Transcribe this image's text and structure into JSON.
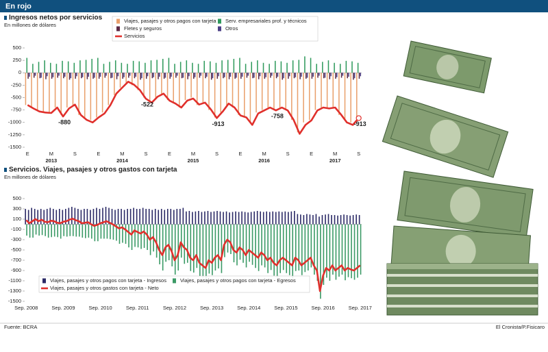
{
  "header": {
    "title": "En rojo"
  },
  "chart_data": [
    {
      "type": "bar",
      "title": "Ingresos netos por servicios",
      "subtitle": "En millones de dólares",
      "categories": [
        "E",
        null,
        null,
        null,
        "M",
        null,
        null,
        null,
        "S",
        null,
        null,
        null,
        "E",
        null,
        null,
        null,
        "M",
        null,
        null,
        null,
        "S",
        null,
        null,
        null,
        "E",
        null,
        null,
        null,
        "M",
        null,
        null,
        null,
        "S",
        null,
        null,
        null,
        "E",
        null,
        null,
        null,
        "M",
        null,
        null,
        null,
        "S",
        null,
        null,
        null,
        "E",
        null,
        null,
        null,
        "M",
        null,
        null,
        null,
        "S"
      ],
      "category_groups": [
        null,
        null,
        null,
        null,
        "2013",
        null,
        null,
        null,
        null,
        null,
        null,
        null,
        null,
        null,
        null,
        null,
        "2014",
        null,
        null,
        null,
        null,
        null,
        null,
        null,
        null,
        null,
        null,
        null,
        "2015",
        null,
        null,
        null,
        null,
        null,
        null,
        null,
        null,
        null,
        null,
        null,
        "2016",
        null,
        null,
        null,
        null,
        null,
        null,
        null,
        null,
        null,
        null,
        null,
        "2017",
        null,
        null,
        null,
        null
      ],
      "series": [
        {
          "name": "Viajes, pasajes y otros pagos con tarjeta",
          "color": "#e9a06c",
          "values": [
            -650,
            -700,
            -750,
            -800,
            -800,
            -700,
            -850,
            -700,
            -650,
            -850,
            -900,
            -950,
            -900,
            -800,
            -650,
            -450,
            -300,
            -200,
            -250,
            -350,
            -500,
            -600,
            -500,
            -450,
            -550,
            -600,
            -700,
            -550,
            -500,
            -650,
            -600,
            -750,
            -900,
            -800,
            -650,
            -700,
            -850,
            -900,
            -1000,
            -800,
            -750,
            -700,
            -750,
            -700,
            -750,
            -950,
            -1200,
            -1000,
            -950,
            -750,
            -700,
            -700,
            -700,
            -850,
            -950,
            -1000,
            -900
          ]
        },
        {
          "name": "Serv. empresariales prof. y técnicos",
          "color": "#2f9a5c",
          "values": [
            300,
            180,
            220,
            250,
            200,
            180,
            240,
            230,
            200,
            250,
            260,
            280,
            300,
            180,
            220,
            250,
            200,
            180,
            240,
            230,
            200,
            250,
            260,
            280,
            300,
            180,
            220,
            250,
            200,
            180,
            240,
            230,
            200,
            250,
            260,
            280,
            300,
            180,
            220,
            250,
            200,
            180,
            240,
            230,
            200,
            250,
            260,
            330,
            300,
            180,
            220,
            250,
            200,
            180,
            240,
            230,
            200
          ]
        },
        {
          "name": "Fletes y seguros",
          "color": "#5b2844",
          "values": [
            -120,
            -100,
            -110,
            -130,
            -120,
            -100,
            -110,
            -140,
            -120,
            -110,
            -130,
            -120,
            -120,
            -100,
            -110,
            -130,
            -120,
            -100,
            -110,
            -140,
            -120,
            -110,
            -130,
            -120,
            -120,
            -100,
            -110,
            -130,
            -120,
            -100,
            -110,
            -140,
            -120,
            -110,
            -130,
            -120,
            -120,
            -100,
            -110,
            -130,
            -120,
            -100,
            -110,
            -140,
            -120,
            -110,
            -130,
            -120,
            -120,
            -100,
            -110,
            -130,
            -120,
            -100,
            -110,
            -140,
            -120
          ]
        },
        {
          "name": "Otros",
          "color": "#4b3f86",
          "values": [
            -80,
            -60,
            -100,
            -70,
            -90,
            -60,
            -80,
            -110,
            -70,
            -90,
            -80,
            -100,
            -80,
            -60,
            -100,
            -70,
            -90,
            -60,
            -80,
            -110,
            -70,
            -90,
            -80,
            -100,
            -80,
            -60,
            -100,
            -70,
            -90,
            -60,
            -80,
            -110,
            -70,
            -90,
            -80,
            -100,
            -80,
            -60,
            -100,
            -70,
            -90,
            -60,
            -80,
            -110,
            -70,
            -90,
            -80,
            -100,
            -80,
            -60,
            -100,
            -70,
            -90,
            -60,
            -80,
            -110,
            -70
          ]
        },
        {
          "name": "Servicios",
          "type": "line",
          "color": "#e0302c",
          "values": [
            -650,
            -720,
            -780,
            -800,
            -810,
            -700,
            -880,
            -720,
            -640,
            -850,
            -950,
            -1000,
            -900,
            -820,
            -650,
            -420,
            -300,
            -180,
            -240,
            -350,
            -522,
            -600,
            -480,
            -420,
            -560,
            -620,
            -700,
            -560,
            -520,
            -640,
            -600,
            -740,
            -913,
            -780,
            -620,
            -700,
            -860,
            -900,
            -1050,
            -820,
            -760,
            -700,
            -758,
            -700,
            -760,
            -950,
            -1230,
            -1050,
            -960,
            -760,
            -700,
            -720,
            -700,
            -840,
            -1000,
            -1050,
            -913
          ],
          "value_labels": [
            null,
            null,
            null,
            null,
            null,
            null,
            "-880",
            null,
            null,
            null,
            null,
            null,
            null,
            null,
            null,
            null,
            null,
            null,
            null,
            null,
            "-522",
            null,
            null,
            null,
            null,
            null,
            null,
            null,
            null,
            null,
            null,
            null,
            "-913",
            null,
            null,
            null,
            null,
            null,
            null,
            null,
            null,
            null,
            "-758",
            null,
            null,
            null,
            null,
            null,
            null,
            null,
            null,
            null,
            null,
            null,
            null,
            null,
            "-913"
          ]
        }
      ],
      "ylim": [
        -1500,
        500
      ],
      "yticks": [
        500,
        250,
        0,
        -250,
        -500,
        -750,
        -1000,
        -1250,
        -1500
      ],
      "grid": false,
      "legend": "top"
    },
    {
      "type": "bar",
      "title": "Servicios. Viajes, pasajes y otros gastos con tarjeta",
      "subtitle": "En millones de dólares",
      "categories": [
        "Sep. 2008",
        null,
        null,
        null,
        null,
        null,
        null,
        null,
        null,
        null,
        null,
        null,
        "Sep. 2009",
        null,
        null,
        null,
        null,
        null,
        null,
        null,
        null,
        null,
        null,
        null,
        "Sep. 2010",
        null,
        null,
        null,
        null,
        null,
        null,
        null,
        null,
        null,
        null,
        null,
        "Sep. 2011",
        null,
        null,
        null,
        null,
        null,
        null,
        null,
        null,
        null,
        null,
        null,
        "Sep. 2012",
        null,
        null,
        null,
        null,
        null,
        null,
        null,
        null,
        null,
        null,
        null,
        "Sep. 2013",
        null,
        null,
        null,
        null,
        null,
        null,
        null,
        null,
        null,
        null,
        null,
        "Sep. 2014",
        null,
        null,
        null,
        null,
        null,
        null,
        null,
        null,
        null,
        null,
        null,
        "Sep. 2015",
        null,
        null,
        null,
        null,
        null,
        null,
        null,
        null,
        null,
        null,
        null,
        "Sep. 2016",
        null,
        null,
        null,
        null,
        null,
        null,
        null,
        null,
        null,
        null,
        null,
        "Sep. 2017"
      ],
      "series": [
        {
          "name": "Viajes, pasajes y otros pagos con tarjeta - Ingresos",
          "color": "#2b2a66",
          "values": [
            300,
            280,
            320,
            300,
            280,
            300,
            280,
            300,
            320,
            300,
            280,
            300,
            280,
            300,
            320,
            340,
            320,
            300,
            280,
            300,
            300,
            280,
            300,
            320,
            300,
            320,
            340,
            320,
            300,
            280,
            300,
            300,
            280,
            300,
            300,
            320,
            300,
            300,
            320,
            300,
            300,
            280,
            300,
            280,
            300,
            280,
            300,
            300,
            280,
            300,
            300,
            320,
            250,
            260,
            240,
            250,
            260,
            240,
            250,
            260,
            240,
            250,
            260,
            250,
            240,
            250,
            230,
            240,
            250,
            240,
            250,
            240,
            230,
            240,
            250,
            260,
            250,
            240,
            250,
            240,
            250,
            240,
            250,
            240,
            250,
            240,
            250,
            260,
            200,
            190,
            180,
            200,
            190,
            180,
            200,
            150,
            180,
            190,
            200,
            180,
            180,
            170,
            180,
            190,
            180,
            170,
            180,
            190,
            180
          ]
        },
        {
          "name": "Viajes, pasajes y otros pagos con tarjeta - Egresos",
          "color": "#3b9a66",
          "values": [
            -220,
            -260,
            -260,
            -200,
            -220,
            -210,
            -230,
            -260,
            -250,
            -240,
            -250,
            -280,
            -230,
            -240,
            -230,
            -230,
            -240,
            -240,
            -260,
            -270,
            -260,
            -280,
            -330,
            -330,
            -280,
            -280,
            -280,
            -290,
            -300,
            -320,
            -380,
            -360,
            -380,
            -450,
            -500,
            -440,
            -450,
            -480,
            -460,
            -500,
            -600,
            -530,
            -650,
            -780,
            -900,
            -730,
            -700,
            -820,
            -980,
            -900,
            -650,
            -770,
            -750,
            -910,
            -940,
            -850,
            -1010,
            -1040,
            -1100,
            -960,
            -990,
            -900,
            -860,
            -950,
            -640,
            -550,
            -580,
            -740,
            -800,
            -690,
            -750,
            -840,
            -730,
            -790,
            -850,
            -910,
            -800,
            -840,
            -950,
            -890,
            -1000,
            -1040,
            -950,
            -890,
            -950,
            -990,
            -1050,
            -910,
            -900,
            -990,
            -930,
            -900,
            -840,
            -980,
            -1100,
            -1450,
            -1180,
            -1040,
            -1100,
            -980,
            -1080,
            -1020,
            -980,
            -1090,
            -1030,
            -1050,
            -1080,
            -1040,
            -980
          ]
        },
        {
          "name": "Viajes, pasajes y otros gastos con tarjeta - Neto",
          "type": "line",
          "color": "#e0302c",
          "values": [
            80,
            20,
            60,
            100,
            60,
            90,
            50,
            40,
            70,
            60,
            30,
            20,
            50,
            60,
            90,
            110,
            80,
            60,
            20,
            30,
            40,
            0,
            -30,
            -10,
            20,
            40,
            60,
            30,
            0,
            -40,
            -80,
            -60,
            -100,
            -150,
            -200,
            -120,
            -150,
            -180,
            -140,
            -200,
            -300,
            -250,
            -350,
            -500,
            -600,
            -450,
            -400,
            -520,
            -700,
            -600,
            -350,
            -450,
            -500,
            -650,
            -700,
            -600,
            -750,
            -800,
            -850,
            -700,
            -750,
            -650,
            -600,
            -700,
            -400,
            -300,
            -350,
            -500,
            -550,
            -450,
            -500,
            -600,
            -500,
            -550,
            -600,
            -650,
            -550,
            -600,
            -700,
            -650,
            -750,
            -800,
            -700,
            -650,
            -700,
            -750,
            -800,
            -650,
            -700,
            -800,
            -750,
            -700,
            -650,
            -800,
            -900,
            -1300,
            -1000,
            -850,
            -900,
            -800,
            -900,
            -850,
            -800,
            -900,
            -850,
            -880,
            -900,
            -850,
            -800
          ]
        }
      ],
      "ylim": [
        -1500,
        500
      ],
      "yticks": [
        500,
        300,
        100,
        -100,
        -300,
        -500,
        -700,
        -900,
        -1100,
        -1300,
        -1500
      ],
      "grid": false,
      "legend": "lower left"
    }
  ],
  "footer": {
    "source": "Fuente: BCRA",
    "credit": "El Cronista/P.Fisicaro"
  }
}
